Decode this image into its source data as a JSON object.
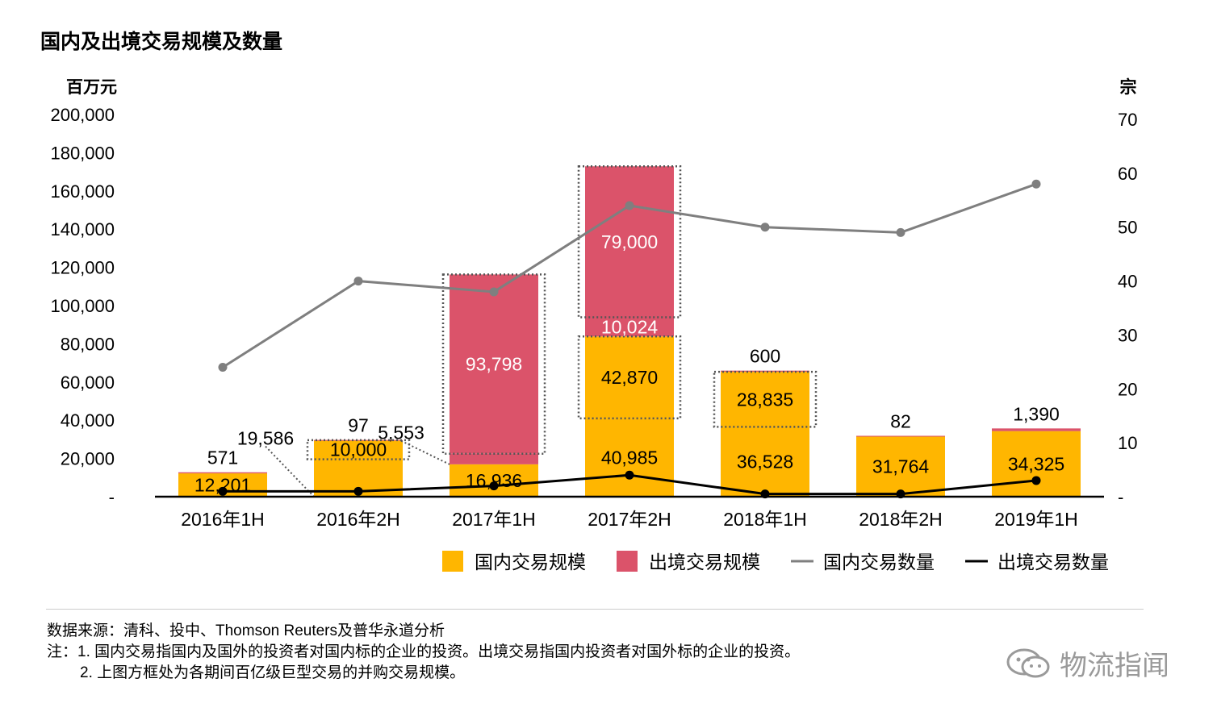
{
  "title": "国内及出境交易规模及数量",
  "colors": {
    "domestic": "#FFB600",
    "outbound": "#DB536A",
    "domestic_count": "#7F7F7F",
    "outbound_count": "#000000",
    "box": "#555555"
  },
  "chart_data": {
    "type": "bar+line",
    "categories": [
      "2016年1H",
      "2016年2H",
      "2017年1H",
      "2017年2H",
      "2018年1H",
      "2018年2H",
      "2019年1H"
    ],
    "left_axis": {
      "unit": "百万元",
      "ylim": [
        0,
        200000
      ],
      "ticks": [
        "-",
        "20,000",
        "40,000",
        "60,000",
        "80,000",
        "100,000",
        "120,000",
        "140,000",
        "160,000",
        "180,000",
        "200,000"
      ]
    },
    "right_axis": {
      "unit": "宗",
      "ylim": [
        0,
        70
      ],
      "ticks": [
        "-",
        "10",
        "20",
        "30",
        "40",
        "50",
        "60",
        "70"
      ]
    },
    "stack_segments": [
      {
        "category": 0,
        "series": "domestic",
        "value": 12201,
        "label": "12,201",
        "label_pos": "inside"
      },
      {
        "category": 0,
        "series": "outbound",
        "value": 571,
        "label": "571",
        "label_pos": "above"
      },
      {
        "category": 1,
        "series": "domestic",
        "value": 19586,
        "label": "19,586",
        "label_pos": "left"
      },
      {
        "category": 1,
        "series": "domestic",
        "value": 10000,
        "label": "10,000",
        "label_pos": "inside",
        "boxed": true
      },
      {
        "category": 1,
        "series": "outbound",
        "value": 97,
        "label": "97",
        "label_pos": "above"
      },
      {
        "category": 2,
        "series": "domestic",
        "value": 16936,
        "label": "16,936",
        "label_pos": "inside"
      },
      {
        "category": 2,
        "series": "outbound",
        "value": 5553,
        "label": "5,553",
        "label_pos": "left"
      },
      {
        "category": 2,
        "series": "outbound",
        "value": 93798,
        "label": "93,798",
        "label_pos": "inside",
        "boxed": true
      },
      {
        "category": 3,
        "series": "domestic",
        "value": 40985,
        "label": "40,985",
        "label_pos": "inside"
      },
      {
        "category": 3,
        "series": "domestic",
        "value": 42870,
        "label": "42,870",
        "label_pos": "inside",
        "boxed": true
      },
      {
        "category": 3,
        "series": "outbound",
        "value": 10024,
        "label": "10,024",
        "label_pos": "inside"
      },
      {
        "category": 3,
        "series": "outbound",
        "value": 79000,
        "label": "79,000",
        "label_pos": "inside",
        "boxed": true
      },
      {
        "category": 4,
        "series": "domestic",
        "value": 36528,
        "label": "36,528",
        "label_pos": "inside"
      },
      {
        "category": 4,
        "series": "domestic",
        "value": 28835,
        "label": "28,835",
        "label_pos": "inside",
        "boxed": true
      },
      {
        "category": 4,
        "series": "outbound",
        "value": 600,
        "label": "600",
        "label_pos": "above"
      },
      {
        "category": 5,
        "series": "domestic",
        "value": 31764,
        "label": "31,764",
        "label_pos": "inside"
      },
      {
        "category": 5,
        "series": "outbound",
        "value": 82,
        "label": "82",
        "label_pos": "above"
      },
      {
        "category": 6,
        "series": "domestic",
        "value": 34325,
        "label": "34,325",
        "label_pos": "inside"
      },
      {
        "category": 6,
        "series": "outbound",
        "value": 1390,
        "label": "1,390",
        "label_pos": "above"
      }
    ],
    "lines": [
      {
        "name": "国内交易数量",
        "series": "domestic_count",
        "values": [
          24,
          40,
          38,
          54,
          50,
          49,
          58
        ]
      },
      {
        "name": "出境交易数量",
        "series": "outbound_count",
        "values": [
          1,
          1,
          2,
          4,
          0.5,
          0.5,
          3
        ]
      }
    ],
    "legend": [
      {
        "label": "国内交易规模",
        "kind": "box",
        "series": "domestic"
      },
      {
        "label": "出境交易规模",
        "kind": "box",
        "series": "outbound"
      },
      {
        "label": "国内交易数量",
        "kind": "line",
        "series": "domestic_count"
      },
      {
        "label": "出境交易数量",
        "kind": "line",
        "series": "outbound_count"
      }
    ],
    "legend_position": "bottom-right"
  },
  "notes": {
    "source": "数据来源：清科、投中、Thomson Reuters及普华永道分析",
    "note1": "注：1. 国内交易指国内及国外的投资者对国内标的企业的投资。出境交易指国内投资者对国外标的企业的投资。",
    "note2": "2. 上图方框处为各期间百亿级巨型交易的并购交易规模。"
  },
  "watermark": {
    "text": "物流指闻",
    "icon": "wechat-icon"
  }
}
